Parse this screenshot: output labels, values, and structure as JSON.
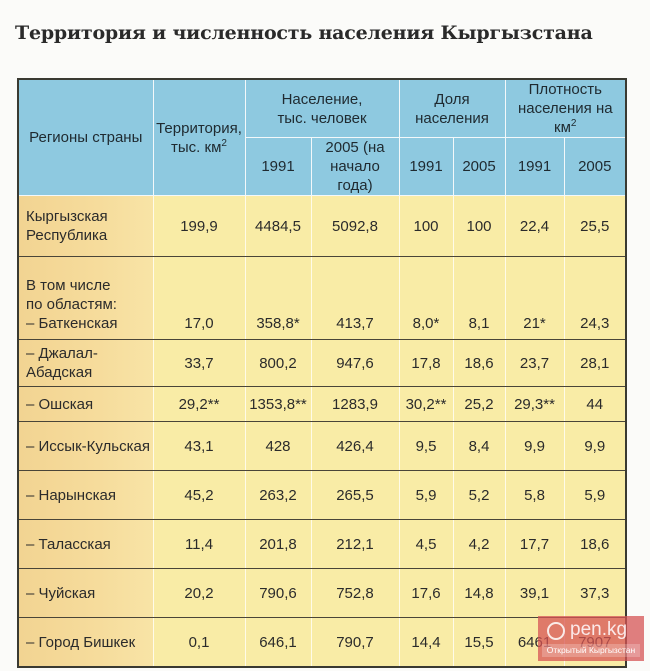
{
  "title": "Территория и численность населения Кыргызстана",
  "table": {
    "headers": {
      "region": "Регионы страны",
      "territory_line1": "Территория,",
      "territory_line2": "тыс. км",
      "territory_sup": "2",
      "population_line1": "Население,",
      "population_line2": "тыс. человек",
      "population_1991": "1991",
      "population_2005_line1": "2005 (на",
      "population_2005_line2": "начало года)",
      "share_line1": "Доля",
      "share_line2": "населения",
      "share_1991": "1991",
      "share_2005": "2005",
      "density_line1": "Плотность",
      "density_line2": "населения на км",
      "density_sup": "2",
      "density_1991": "1991",
      "density_2005": "2005"
    },
    "rows": [
      {
        "region_line1": "Кыргызская",
        "region_line2": "Республика",
        "territory": "199,9",
        "pop_1991": "4484,5",
        "pop_2005": "5092,8",
        "share_1991": "100",
        "share_2005": "100",
        "density_1991": "22,4",
        "density_2005": "25,5"
      },
      {
        "region_line1": "В том числе",
        "region_line2": "по областям:",
        "region_line3": "– Баткенская",
        "territory": "17,0",
        "pop_1991": "358,8*",
        "pop_2005": "413,7",
        "share_1991": "8,0*",
        "share_2005": "8,1",
        "density_1991": "21*",
        "density_2005": "24,3"
      },
      {
        "region_line1": "– Джалал-",
        "region_line2": "Абадская",
        "territory": "33,7",
        "pop_1991": "800,2",
        "pop_2005": "947,6",
        "share_1991": "17,8",
        "share_2005": "18,6",
        "density_1991": "23,7",
        "density_2005": "28,1"
      },
      {
        "region_line1": "– Ошская",
        "territory": "29,2**",
        "pop_1991": "1353,8**",
        "pop_2005": "1283,9",
        "share_1991": "30,2**",
        "share_2005": "25,2",
        "density_1991": "29,3**",
        "density_2005": "44"
      },
      {
        "region_line1": "– Иссык-Кульская",
        "territory": "43,1",
        "pop_1991": "428",
        "pop_2005": "426,4",
        "share_1991": "9,5",
        "share_2005": "8,4",
        "density_1991": "9,9",
        "density_2005": "9,9"
      },
      {
        "region_line1": "– Нарынская",
        "territory": "45,2",
        "pop_1991": "263,2",
        "pop_2005": "265,5",
        "share_1991": "5,9",
        "share_2005": "5,2",
        "density_1991": "5,8",
        "density_2005": "5,9"
      },
      {
        "region_line1": "– Таласская",
        "territory": "11,4",
        "pop_1991": "201,8",
        "pop_2005": "212,1",
        "share_1991": "4,5",
        "share_2005": "4,2",
        "density_1991": "17,7",
        "density_2005": "18,6"
      },
      {
        "region_line1": "– Чуйская",
        "territory": "20,2",
        "pop_1991": "790,6",
        "pop_2005": "752,8",
        "share_1991": "17,6",
        "share_2005": "14,8",
        "density_1991": "39,1",
        "density_2005": "37,3"
      },
      {
        "region_line1": "– Город Бишкек",
        "territory": "0,1",
        "pop_1991": "646,1",
        "pop_2005": "790,7",
        "share_1991": "14,4",
        "share_2005": "15,5",
        "density_1991": "6461",
        "density_2005": "7907"
      }
    ]
  },
  "watermark": {
    "logo": "pen.kg",
    "subtitle": "Открытый Кыргызстан"
  },
  "colors": {
    "header_bg": "#8ec9e0",
    "body_bg": "#f9eca6",
    "region_bg": "#f2d492",
    "border": "#3a3a32",
    "watermark": "#d65454"
  }
}
